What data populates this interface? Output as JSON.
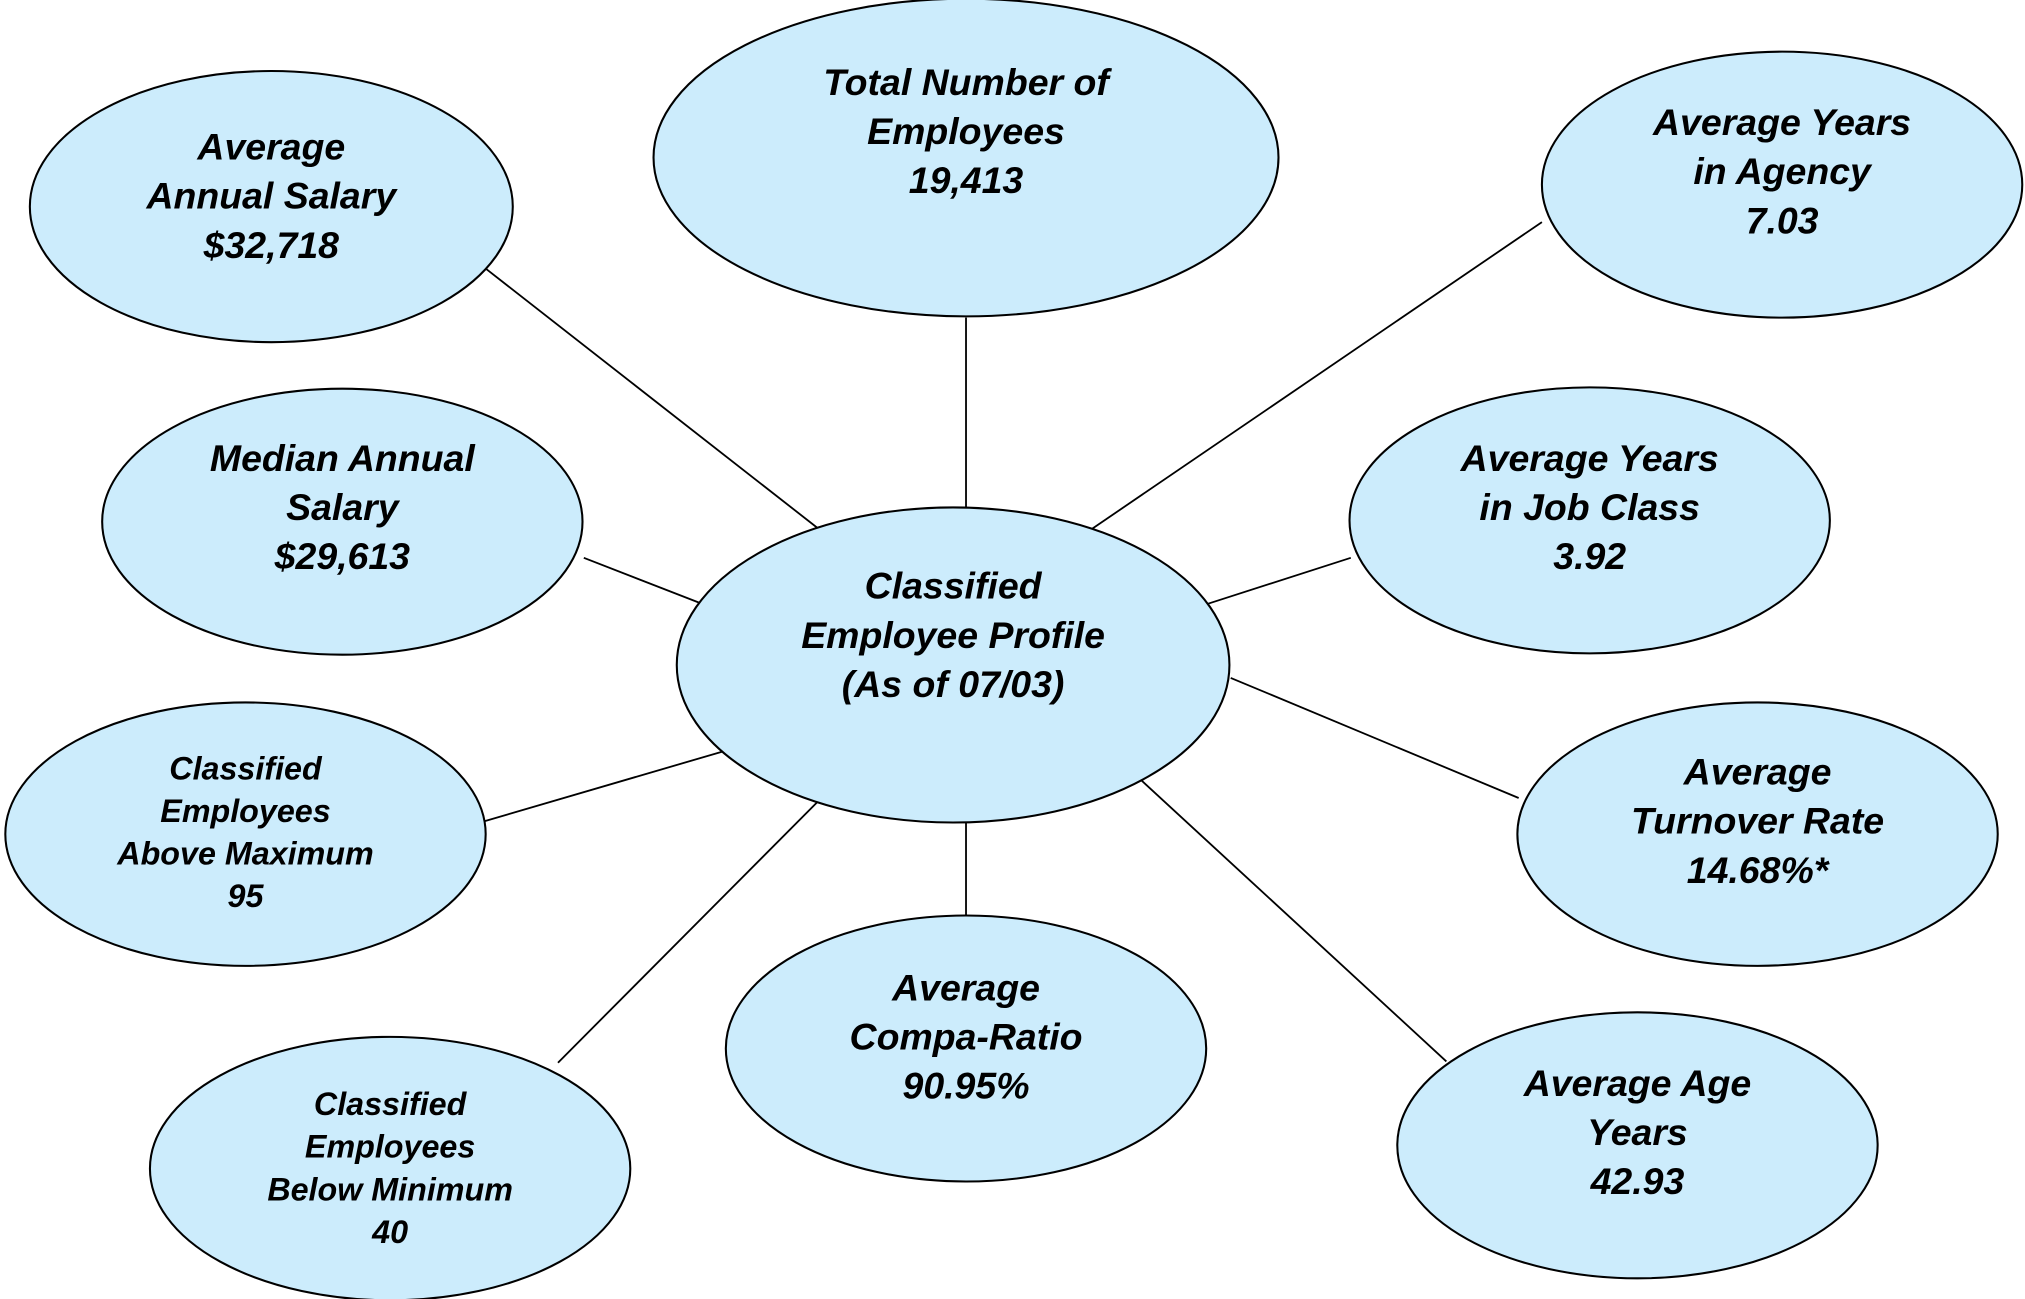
{
  "center": {
    "lines": [
      "Classified",
      "Employee Profile",
      "(As of 07/03)"
    ]
  },
  "nodes": [
    {
      "lines": [
        "Average",
        "Annual Salary"
      ],
      "value": "$32,718"
    },
    {
      "lines": [
        "Total Number of",
        "Employees"
      ],
      "value": "19,413"
    },
    {
      "lines": [
        "Average Years",
        "in Agency"
      ],
      "value": "7.03"
    },
    {
      "lines": [
        "Median Annual",
        "Salary"
      ],
      "value": "$29,613"
    },
    {
      "lines": [
        "Average Years",
        "in Job Class"
      ],
      "value": "3.92"
    },
    {
      "lines": [
        "Classified",
        "Employees",
        "Above Maximum"
      ],
      "value": "95"
    },
    {
      "lines": [
        "Average",
        "Turnover Rate"
      ],
      "value": "14.68%*"
    },
    {
      "lines": [
        "Average",
        "Compa-Ratio"
      ],
      "value": "90.95%"
    },
    {
      "lines": [
        "Classified",
        "Employees",
        "Below Minimum"
      ],
      "value": "40"
    },
    {
      "lines": [
        "Average Age",
        "Years"
      ],
      "value": "42.93"
    }
  ]
}
